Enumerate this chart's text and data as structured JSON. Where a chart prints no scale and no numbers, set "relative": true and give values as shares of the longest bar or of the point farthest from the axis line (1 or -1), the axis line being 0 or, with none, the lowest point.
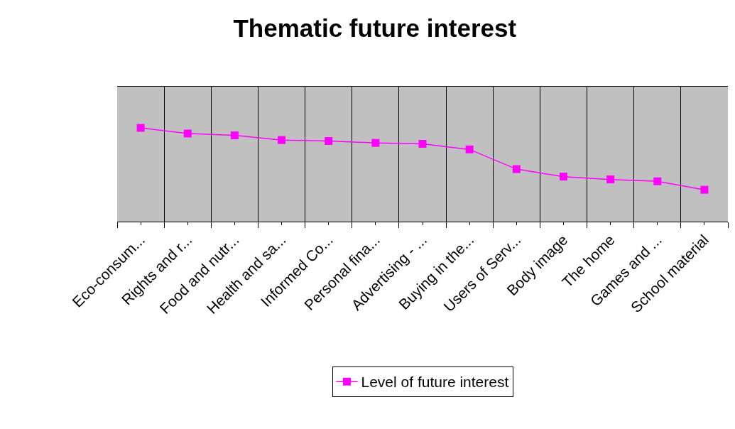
{
  "chart_data": {
    "type": "line",
    "title": "Thematic future interest",
    "relative": true,
    "categories": [
      "Eco-consum...",
      "Rights and r...",
      "Food and nutr...",
      "Health and sa...",
      "Informed Co...",
      "Personal fina...",
      "Advertising - ...",
      "Buying in the...",
      "Users of Serv...",
      "Body image",
      "The home",
      "Games and ...",
      "School material"
    ],
    "series": [
      {
        "name": "Level of future interest",
        "color": "#ff00ff",
        "values": [
          1,
          0.94,
          0.92,
          0.87,
          0.86,
          0.84,
          0.83,
          0.77,
          0.56,
          0.48,
          0.45,
          0.43,
          0.34
        ]
      }
    ],
    "marker": "square",
    "line_style": "solid",
    "grid": "x",
    "legend": "bottom"
  }
}
